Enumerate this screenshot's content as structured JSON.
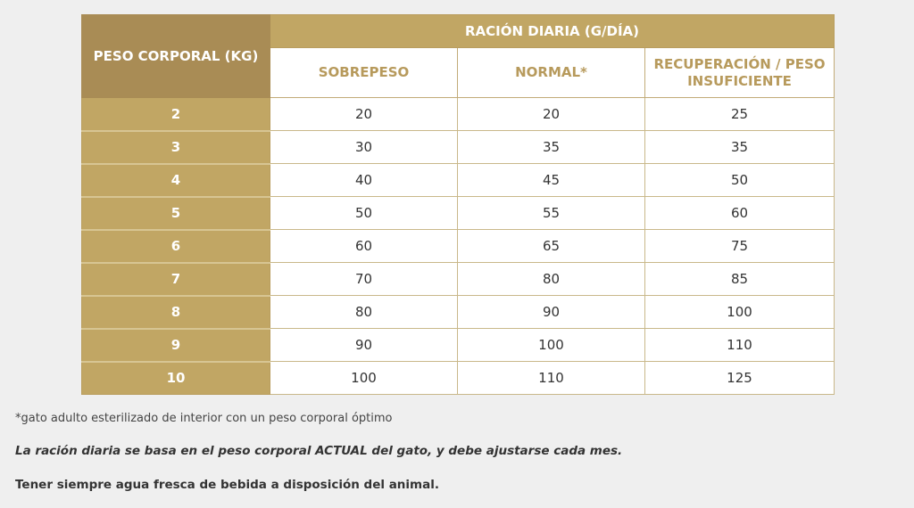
{
  "table": {
    "weight_header": "PESO CORPORAL (KG)",
    "ration_header": "RACIÓN DIARIA (G/DÍA)",
    "columns": [
      "SOBREPESO",
      "NORMAL*",
      "RECUPERACIÓN / PESO INSUFICIENTE"
    ],
    "rows": [
      {
        "weight": "2",
        "values": [
          "20",
          "20",
          "25"
        ]
      },
      {
        "weight": "3",
        "values": [
          "30",
          "35",
          "35"
        ]
      },
      {
        "weight": "4",
        "values": [
          "40",
          "45",
          "50"
        ]
      },
      {
        "weight": "5",
        "values": [
          "50",
          "55",
          "60"
        ]
      },
      {
        "weight": "6",
        "values": [
          "60",
          "65",
          "75"
        ]
      },
      {
        "weight": "7",
        "values": [
          "70",
          "80",
          "85"
        ]
      },
      {
        "weight": "8",
        "values": [
          "80",
          "90",
          "100"
        ]
      },
      {
        "weight": "9",
        "values": [
          "90",
          "100",
          "110"
        ]
      },
      {
        "weight": "10",
        "values": [
          "100",
          "110",
          "125"
        ]
      }
    ]
  },
  "notes": {
    "footnote": "*gato adulto esterilizado de interior con un peso corporal óptimo",
    "italic_note": "La ración diaria se basa en el peso corporal ACTUAL del gato, y debe ajustarse cada mes.",
    "water_note": "Tener siempre agua fresca de bebida a disposición del animal."
  },
  "colors": {
    "gold_dark": "#a98c55",
    "gold": "#c1a664",
    "gold_text": "#b79a5c",
    "background": "#efefef"
  }
}
